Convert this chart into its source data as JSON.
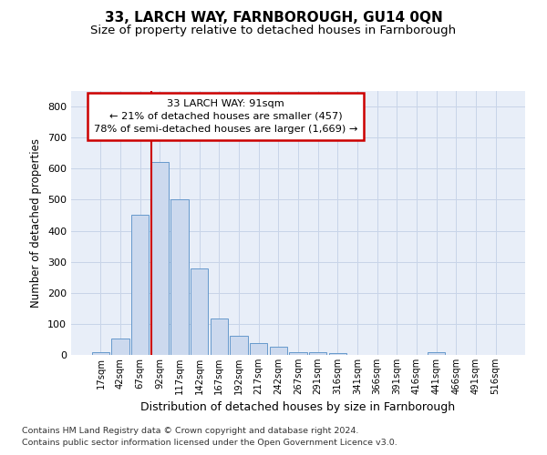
{
  "title": "33, LARCH WAY, FARNBOROUGH, GU14 0QN",
  "subtitle": "Size of property relative to detached houses in Farnborough",
  "xlabel": "Distribution of detached houses by size in Farnborough",
  "ylabel": "Number of detached properties",
  "footnote1": "Contains HM Land Registry data © Crown copyright and database right 2024.",
  "footnote2": "Contains public sector information licensed under the Open Government Licence v3.0.",
  "categories": [
    "17sqm",
    "42sqm",
    "67sqm",
    "92sqm",
    "117sqm",
    "142sqm",
    "167sqm",
    "192sqm",
    "217sqm",
    "242sqm",
    "267sqm",
    "291sqm",
    "316sqm",
    "341sqm",
    "366sqm",
    "391sqm",
    "416sqm",
    "441sqm",
    "466sqm",
    "491sqm",
    "516sqm"
  ],
  "bar_values": [
    10,
    52,
    450,
    622,
    500,
    278,
    117,
    62,
    37,
    25,
    10,
    8,
    5,
    0,
    0,
    0,
    0,
    8,
    0,
    0,
    0
  ],
  "bar_color": "#ccd9ee",
  "bar_edge_color": "#6699cc",
  "annotation_box_text": "33 LARCH WAY: 91sqm\n← 21% of detached houses are smaller (457)\n78% of semi-detached houses are larger (1,669) →",
  "annotation_box_color": "#ffffff",
  "annotation_box_edge_color": "#cc0000",
  "vline_color": "#cc0000",
  "vline_x_index": 3,
  "ylim": [
    0,
    850
  ],
  "yticks": [
    0,
    100,
    200,
    300,
    400,
    500,
    600,
    700,
    800
  ],
  "grid_color": "#c8d4e8",
  "bg_color": "#e8eef8",
  "title_fontsize": 11,
  "subtitle_fontsize": 9.5,
  "footnote_fontsize": 6.8
}
